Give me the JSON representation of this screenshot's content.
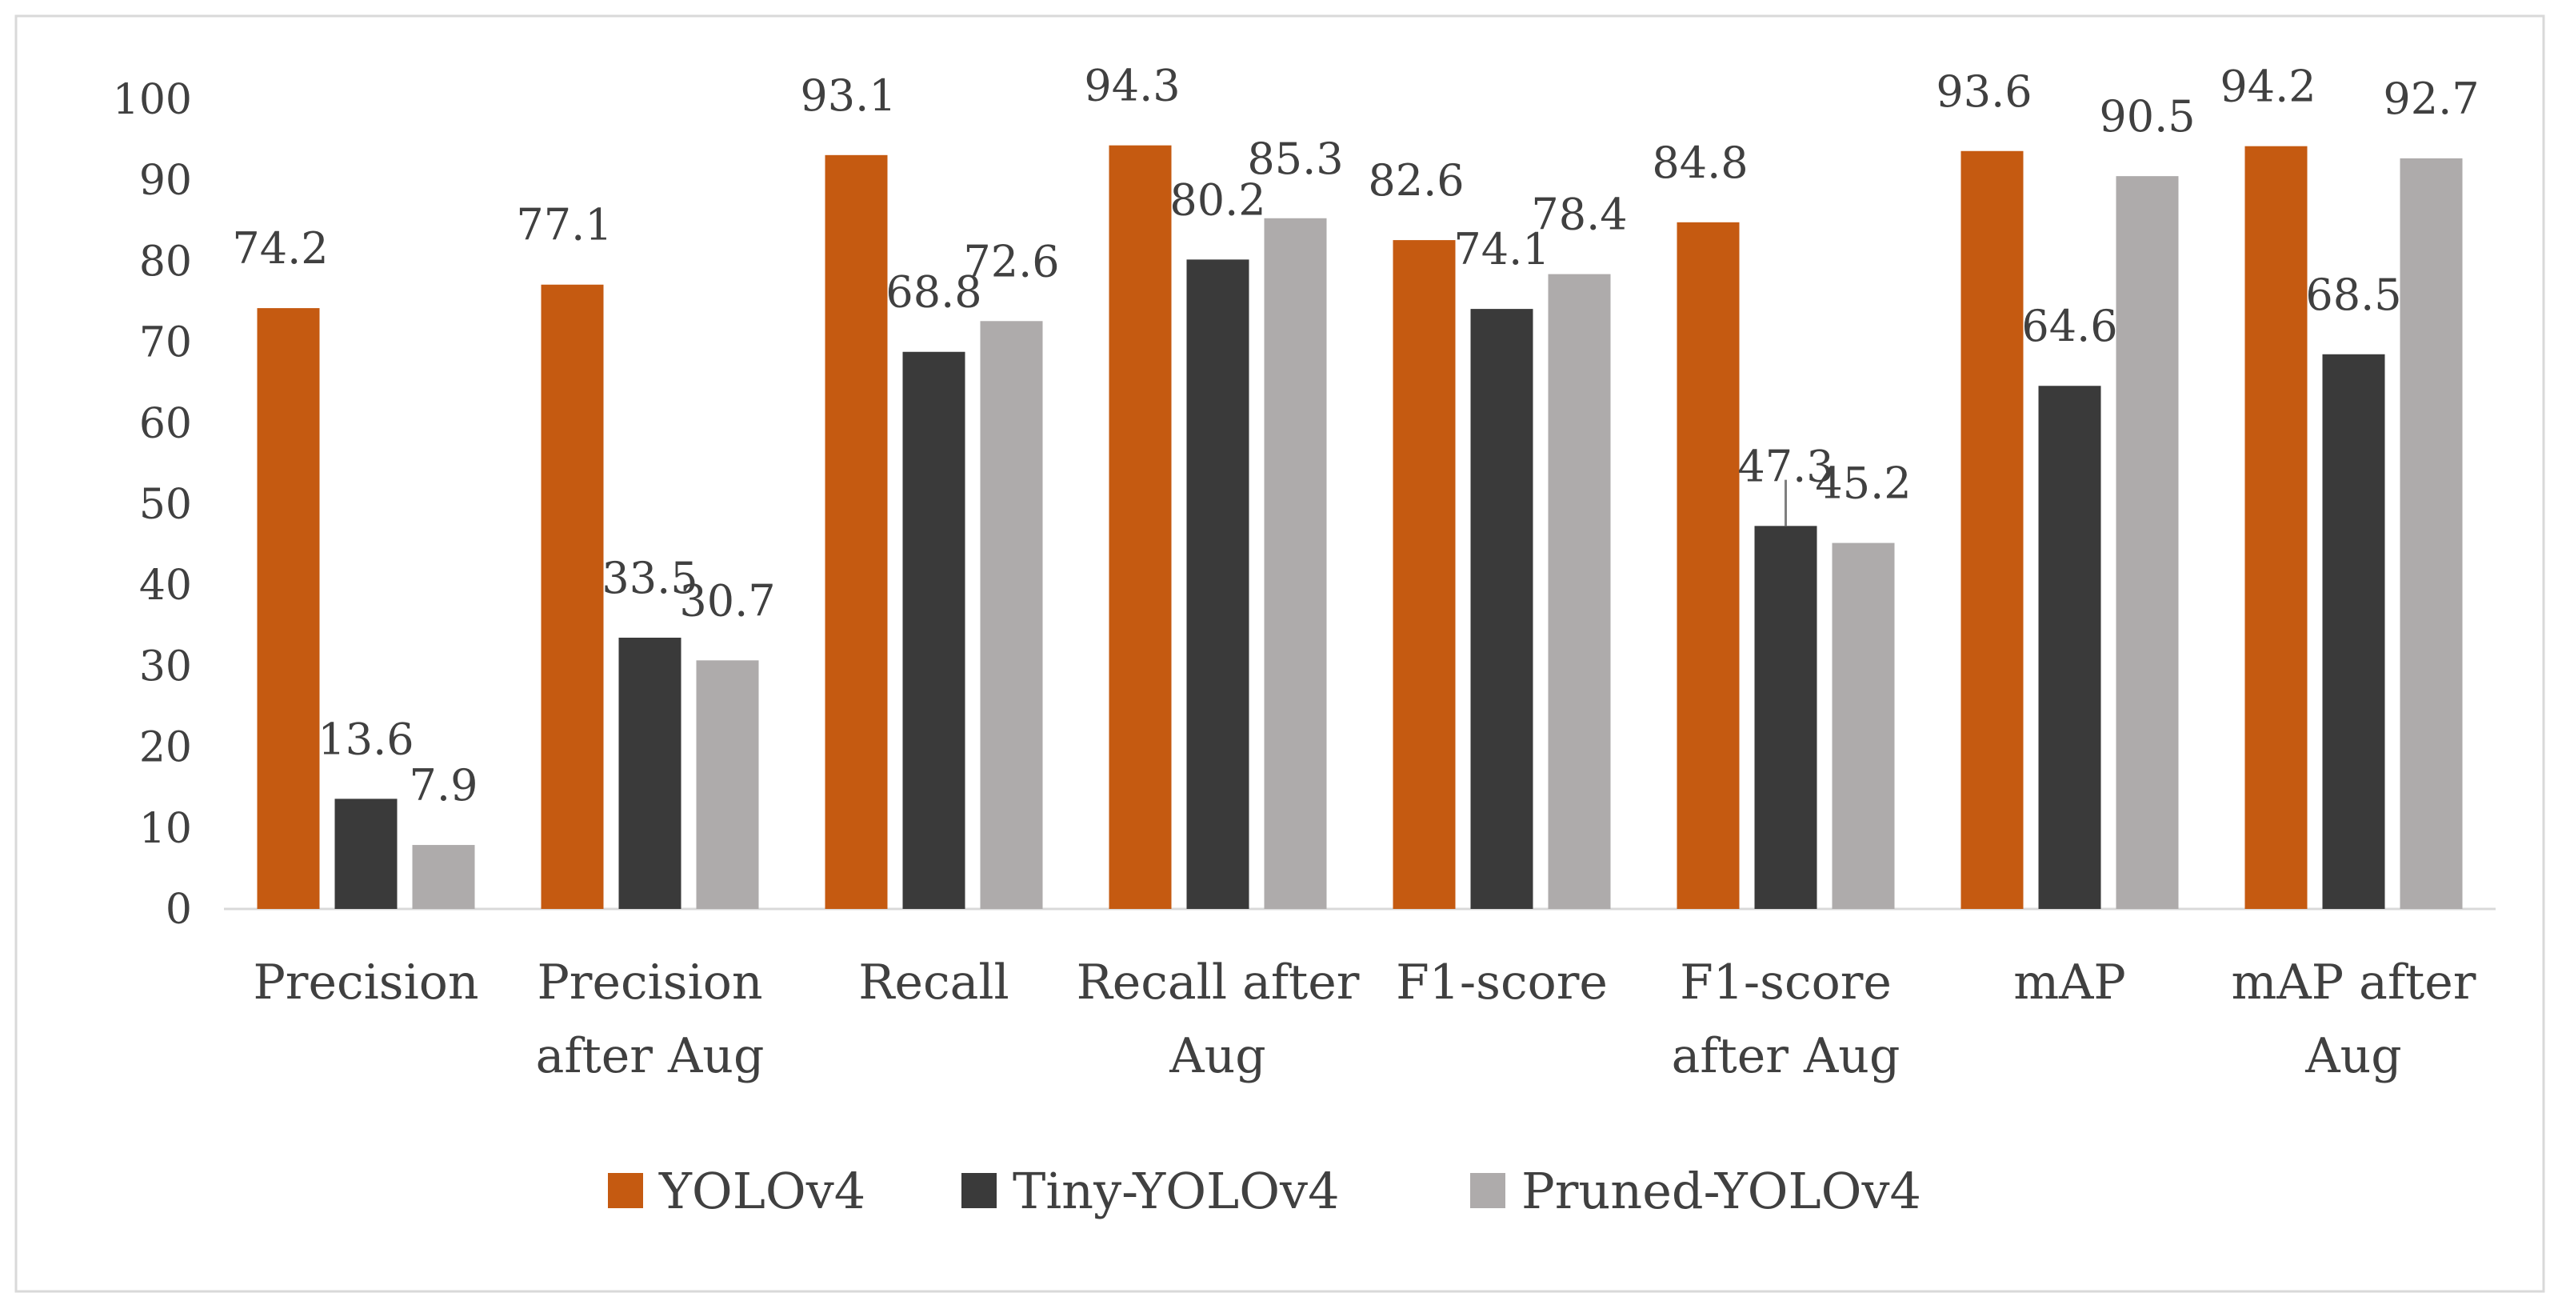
{
  "chart_data": {
    "type": "bar",
    "title": "",
    "xlabel": "",
    "ylabel": "",
    "ylim": [
      0,
      100
    ],
    "yticks": [
      0,
      10,
      20,
      30,
      40,
      50,
      60,
      70,
      80,
      90,
      100
    ],
    "grid": false,
    "legend_position": "bottom",
    "categories": [
      [
        "Precision"
      ],
      [
        "Precision",
        "after Aug"
      ],
      [
        "Recall"
      ],
      [
        "Recall after",
        "Aug"
      ],
      [
        "F1-score"
      ],
      [
        "F1-score",
        "after Aug"
      ],
      [
        "mAP"
      ],
      [
        "mAP after",
        "Aug"
      ]
    ],
    "series": [
      {
        "name": "YOLOv4",
        "color": "#c55a11",
        "values": [
          74.2,
          77.1,
          93.1,
          94.3,
          82.6,
          84.8,
          93.6,
          94.2
        ]
      },
      {
        "name": "Tiny-YOLOv4",
        "color": "#3a3a3a",
        "values": [
          13.6,
          33.5,
          68.8,
          80.2,
          74.1,
          47.3,
          64.6,
          68.5
        ]
      },
      {
        "name": "Pruned-YOLOv4",
        "color": "#aeabab",
        "values": [
          7.9,
          30.7,
          72.6,
          85.3,
          78.4,
          45.2,
          90.5,
          92.7
        ]
      }
    ],
    "error_bars": [
      {
        "series": "Tiny-YOLOv4",
        "category_index": 5,
        "upper": 53.0
      }
    ]
  }
}
